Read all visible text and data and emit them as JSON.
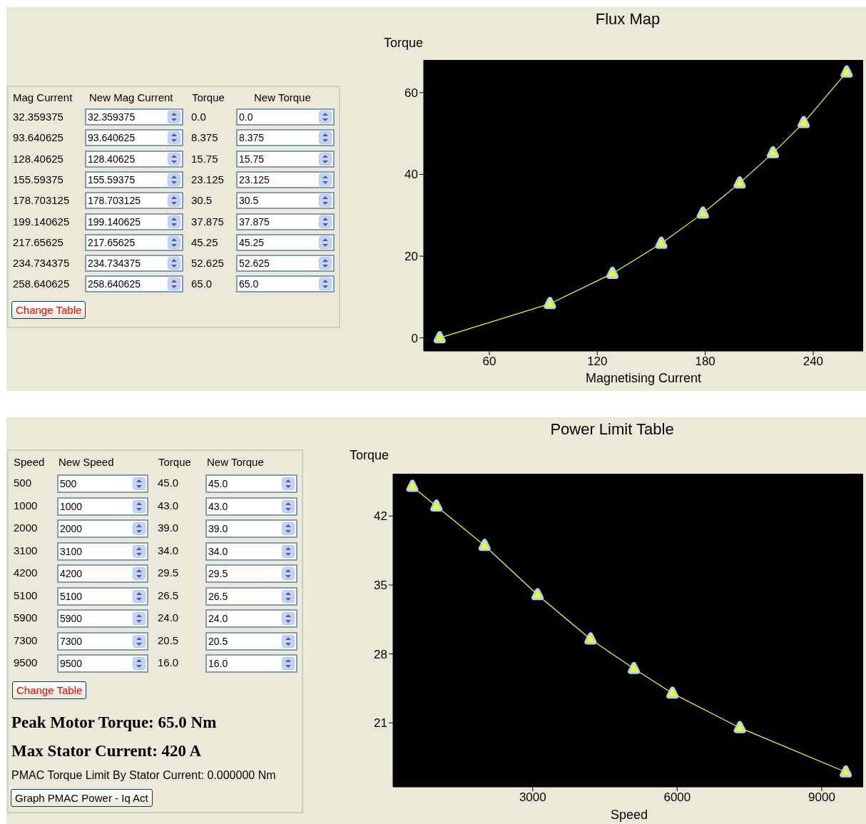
{
  "chart_data": [
    {
      "type": "other",
      "annotations": [
        "Mag Current",
        "New Mag Current",
        "Torque",
        "New Torque",
        "32.359375",
        "32.359375",
        "0.0",
        "0.0",
        "93.640625",
        "93.640625",
        "8.375",
        "8.375",
        "128.40625",
        "128.40625",
        "15.75",
        "15.75",
        "155.59375",
        "155.59375",
        "23.125",
        "23.125",
        "178.703125",
        "178.703125",
        "30.5",
        "30.5",
        "199.140625",
        "199.140625",
        "37.875",
        "37.875",
        "217.65625",
        "217.65625",
        "45.25",
        "45.25",
        "234.734375",
        "234.734375",
        "52.625",
        "52.625",
        "258.640625",
        "258.640625",
        "65.0",
        "65.0",
        "Change Table"
      ]
    },
    {
      "type": "line",
      "title": "Flux Map",
      "xlabel": "Magnetising Current",
      "ylabel": "Torque",
      "x": [
        32.359375,
        93.640625,
        128.40625,
        155.59375,
        178.703125,
        199.140625,
        217.65625,
        234.734375,
        258.640625
      ],
      "series": [
        {
          "color": "#ffff00",
          "values": [
            0,
            8.375,
            15.75,
            23.125,
            30.5,
            37.875,
            45.25,
            52.625,
            65
          ]
        }
      ],
      "xlim": [
        23.5,
        267.8
      ],
      "xticks": [
        60,
        120,
        180,
        240
      ],
      "ylim": [
        -3.2,
        68
      ],
      "yticks": [
        0,
        20,
        40,
        60
      ],
      "marker": "triangle",
      "legend": false,
      "grid": false
    },
    {
      "type": "other",
      "annotations": [
        "Speed",
        "New Speed",
        "Torque",
        "New Torque",
        "500",
        "500",
        "45.0",
        "45.0",
        "1000",
        "1000",
        "43.0",
        "43.0",
        "2000",
        "2000",
        "39.0",
        "39.0",
        "3100",
        "3100",
        "34.0",
        "34.0",
        "4200",
        "4200",
        "29.5",
        "29.5",
        "5100",
        "5100",
        "26.5",
        "26.5",
        "5900",
        "5900",
        "24.0",
        "24.0",
        "7300",
        "7300",
        "20.5",
        "20.5",
        "9500",
        "9500",
        "16.0",
        "16.0",
        "Change Table",
        "Peak Motor Torque: 65.0 Nm",
        "Max Stator Current: 420 A",
        "PMAC Torque Limit By Stator Current: 0.000000 Nm",
        "Graph PMAC Power - Iq Act"
      ]
    },
    {
      "type": "line",
      "title": "Power Limit Table",
      "xlabel": "Speed",
      "ylabel": "Torque",
      "x": [
        500,
        1000,
        2000,
        3100,
        4200,
        5100,
        5900,
        7300,
        9500
      ],
      "series": [
        {
          "color": "#ffff00",
          "values": [
            45,
            43,
            39,
            34,
            29.5,
            26.5,
            24,
            20.5,
            16
          ]
        }
      ],
      "xlim": [
        100,
        9860
      ],
      "xticks": [
        3000,
        6000,
        9000
      ],
      "ylim": [
        14.5,
        46.3
      ],
      "yticks": [
        21,
        28,
        35,
        42
      ],
      "marker": "triangle",
      "legend": false,
      "grid": false
    }
  ]
}
